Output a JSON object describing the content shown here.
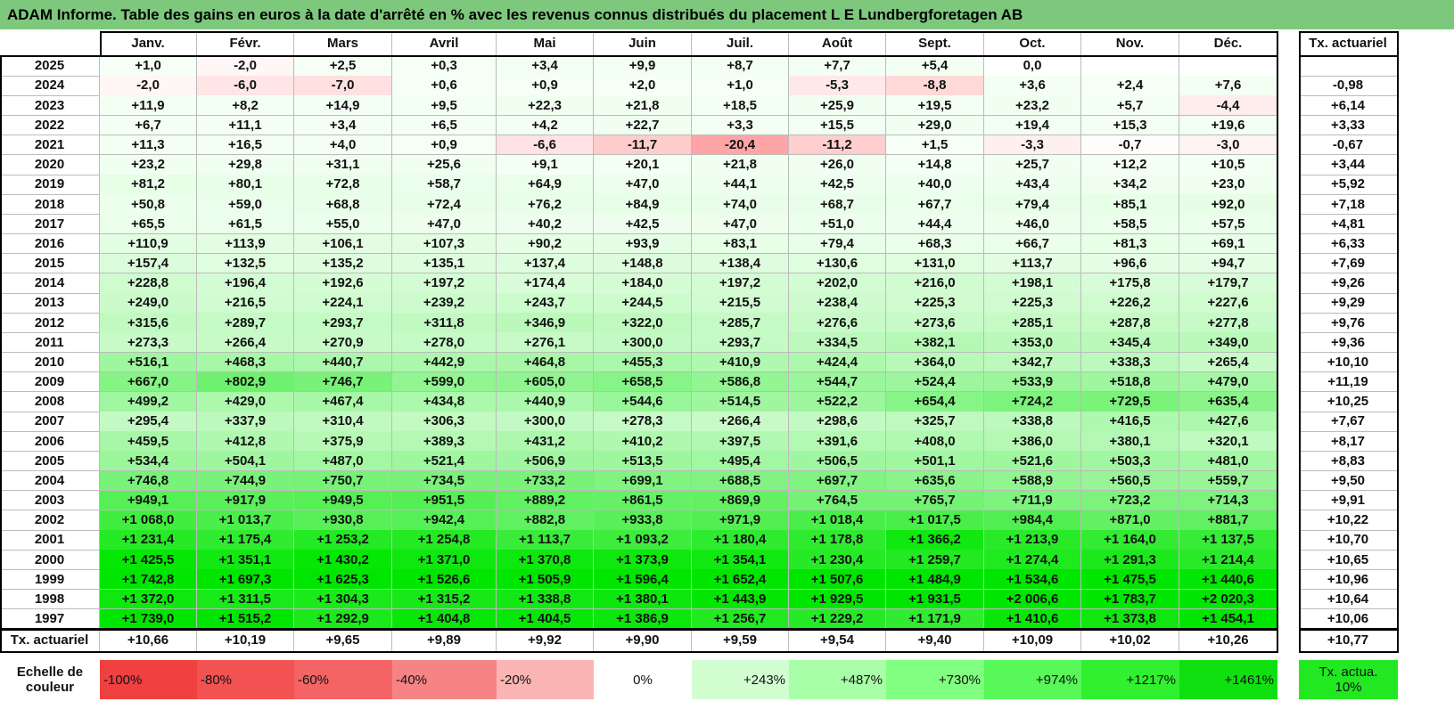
{
  "title": "ADAM Informe. Table des gains en euros à la date d'arrêté en % avec les revenus connus distribués du placement L E Lundbergforetagen AB",
  "header": {
    "months": [
      "Janv.",
      "Févr.",
      "Mars",
      "Avril",
      "Mai",
      "Juin",
      "Juil.",
      "Août",
      "Sept.",
      "Oct.",
      "Nov.",
      "Déc."
    ],
    "tx": "Tx. actuariel"
  },
  "table": {
    "rows": [
      {
        "year": "2025",
        "cells": [
          "+1,0",
          "-2,0",
          "+2,5",
          "+0,3",
          "+3,4",
          "+9,9",
          "+8,7",
          "+7,7",
          "+5,4",
          "0,0"
        ]
      },
      {
        "year": "2024",
        "cells": [
          "-2,0",
          "-6,0",
          "-7,0",
          "+0,6",
          "+0,9",
          "+2,0",
          "+1,0",
          "-5,3",
          "-8,8",
          "+3,6",
          "+2,4",
          "+7,6"
        ],
        "tx": "-0,98"
      },
      {
        "year": "2023",
        "cells": [
          "+11,9",
          "+8,2",
          "+14,9",
          "+9,5",
          "+22,3",
          "+21,8",
          "+18,5",
          "+25,9",
          "+19,5",
          "+23,2",
          "+5,7",
          "-4,4"
        ],
        "tx": "+6,14"
      },
      {
        "year": "2022",
        "cells": [
          "+6,7",
          "+11,1",
          "+3,4",
          "+6,5",
          "+4,2",
          "+22,7",
          "+3,3",
          "+15,5",
          "+29,0",
          "+19,4",
          "+15,3",
          "+19,6"
        ],
        "tx": "+3,33"
      },
      {
        "year": "2021",
        "cells": [
          "+11,3",
          "+16,5",
          "+4,0",
          "+0,9",
          "-6,6",
          "-11,7",
          "-20,4",
          "-11,2",
          "+1,5",
          "-3,3",
          "-0,7",
          "-3,0"
        ],
        "tx": "-0,67"
      },
      {
        "year": "2020",
        "cells": [
          "+23,2",
          "+29,8",
          "+31,1",
          "+25,6",
          "+9,1",
          "+20,1",
          "+21,8",
          "+26,0",
          "+14,8",
          "+25,7",
          "+12,2",
          "+10,5"
        ],
        "tx": "+3,44"
      },
      {
        "year": "2019",
        "cells": [
          "+81,2",
          "+80,1",
          "+72,8",
          "+58,7",
          "+64,9",
          "+47,0",
          "+44,1",
          "+42,5",
          "+40,0",
          "+43,4",
          "+34,2",
          "+23,0"
        ],
        "tx": "+5,92"
      },
      {
        "year": "2018",
        "cells": [
          "+50,8",
          "+59,0",
          "+68,8",
          "+72,4",
          "+76,2",
          "+84,9",
          "+74,0",
          "+68,7",
          "+67,7",
          "+79,4",
          "+85,1",
          "+92,0"
        ],
        "tx": "+7,18"
      },
      {
        "year": "2017",
        "cells": [
          "+65,5",
          "+61,5",
          "+55,0",
          "+47,0",
          "+40,2",
          "+42,5",
          "+47,0",
          "+51,0",
          "+44,4",
          "+46,0",
          "+58,5",
          "+57,5"
        ],
        "tx": "+4,81"
      },
      {
        "year": "2016",
        "cells": [
          "+110,9",
          "+113,9",
          "+106,1",
          "+107,3",
          "+90,2",
          "+93,9",
          "+83,1",
          "+79,4",
          "+68,3",
          "+66,7",
          "+81,3",
          "+69,1"
        ],
        "tx": "+6,33"
      },
      {
        "year": "2015",
        "cells": [
          "+157,4",
          "+132,5",
          "+135,2",
          "+135,1",
          "+137,4",
          "+148,8",
          "+138,4",
          "+130,6",
          "+131,0",
          "+113,7",
          "+96,6",
          "+94,7"
        ],
        "tx": "+7,69"
      },
      {
        "year": "2014",
        "cells": [
          "+228,8",
          "+196,4",
          "+192,6",
          "+197,2",
          "+174,4",
          "+184,0",
          "+197,2",
          "+202,0",
          "+216,0",
          "+198,1",
          "+175,8",
          "+179,7"
        ],
        "tx": "+9,26"
      },
      {
        "year": "2013",
        "cells": [
          "+249,0",
          "+216,5",
          "+224,1",
          "+239,2",
          "+243,7",
          "+244,5",
          "+215,5",
          "+238,4",
          "+225,3",
          "+225,3",
          "+226,2",
          "+227,6"
        ],
        "tx": "+9,29"
      },
      {
        "year": "2012",
        "cells": [
          "+315,6",
          "+289,7",
          "+293,7",
          "+311,8",
          "+346,9",
          "+322,0",
          "+285,7",
          "+276,6",
          "+273,6",
          "+285,1",
          "+287,8",
          "+277,8"
        ],
        "tx": "+9,76"
      },
      {
        "year": "2011",
        "cells": [
          "+273,3",
          "+266,4",
          "+270,9",
          "+278,0",
          "+276,1",
          "+300,0",
          "+293,7",
          "+334,5",
          "+382,1",
          "+353,0",
          "+345,4",
          "+349,0"
        ],
        "tx": "+9,36"
      },
      {
        "year": "2010",
        "cells": [
          "+516,1",
          "+468,3",
          "+440,7",
          "+442,9",
          "+464,8",
          "+455,3",
          "+410,9",
          "+424,4",
          "+364,0",
          "+342,7",
          "+338,3",
          "+265,4"
        ],
        "tx": "+10,10"
      },
      {
        "year": "2009",
        "cells": [
          "+667,0",
          "+802,9",
          "+746,7",
          "+599,0",
          "+605,0",
          "+658,5",
          "+586,8",
          "+544,7",
          "+524,4",
          "+533,9",
          "+518,8",
          "+479,0"
        ],
        "tx": "+11,19"
      },
      {
        "year": "2008",
        "cells": [
          "+499,2",
          "+429,0",
          "+467,4",
          "+434,8",
          "+440,9",
          "+544,6",
          "+514,5",
          "+522,2",
          "+654,4",
          "+724,2",
          "+729,5",
          "+635,4"
        ],
        "tx": "+10,25"
      },
      {
        "year": "2007",
        "cells": [
          "+295,4",
          "+337,9",
          "+310,4",
          "+306,3",
          "+300,0",
          "+278,3",
          "+266,4",
          "+298,6",
          "+325,7",
          "+338,8",
          "+416,5",
          "+427,6"
        ],
        "tx": "+7,67"
      },
      {
        "year": "2006",
        "cells": [
          "+459,5",
          "+412,8",
          "+375,9",
          "+389,3",
          "+431,2",
          "+410,2",
          "+397,5",
          "+391,6",
          "+408,0",
          "+386,0",
          "+380,1",
          "+320,1"
        ],
        "tx": "+8,17"
      },
      {
        "year": "2005",
        "cells": [
          "+534,4",
          "+504,1",
          "+487,0",
          "+521,4",
          "+506,9",
          "+513,5",
          "+495,4",
          "+506,5",
          "+501,1",
          "+521,6",
          "+503,3",
          "+481,0"
        ],
        "tx": "+8,83"
      },
      {
        "year": "2004",
        "cells": [
          "+746,8",
          "+744,9",
          "+750,7",
          "+734,5",
          "+733,2",
          "+699,1",
          "+688,5",
          "+697,7",
          "+635,6",
          "+588,9",
          "+560,5",
          "+559,7"
        ],
        "tx": "+9,50"
      },
      {
        "year": "2003",
        "cells": [
          "+949,1",
          "+917,9",
          "+949,5",
          "+951,5",
          "+889,2",
          "+861,5",
          "+869,9",
          "+764,5",
          "+765,7",
          "+711,9",
          "+723,2",
          "+714,3"
        ],
        "tx": "+9,91"
      },
      {
        "year": "2002",
        "cells": [
          "+1 068,0",
          "+1 013,7",
          "+930,8",
          "+942,4",
          "+882,8",
          "+933,8",
          "+971,9",
          "+1 018,4",
          "+1 017,5",
          "+984,4",
          "+871,0",
          "+881,7"
        ],
        "tx": "+10,22"
      },
      {
        "year": "2001",
        "cells": [
          "+1 231,4",
          "+1 175,4",
          "+1 253,2",
          "+1 254,8",
          "+1 113,7",
          "+1 093,2",
          "+1 180,4",
          "+1 178,8",
          "+1 366,2",
          "+1 213,9",
          "+1 164,0",
          "+1 137,5"
        ],
        "tx": "+10,70"
      },
      {
        "year": "2000",
        "cells": [
          "+1 425,5",
          "+1 351,1",
          "+1 430,2",
          "+1 371,0",
          "+1 370,8",
          "+1 373,9",
          "+1 354,1",
          "+1 230,4",
          "+1 259,7",
          "+1 274,4",
          "+1 291,3",
          "+1 214,4"
        ],
        "tx": "+10,65"
      },
      {
        "year": "1999",
        "cells": [
          "+1 742,8",
          "+1 697,3",
          "+1 625,3",
          "+1 526,6",
          "+1 505,9",
          "+1 596,4",
          "+1 652,4",
          "+1 507,6",
          "+1 484,9",
          "+1 534,6",
          "+1 475,5",
          "+1 440,6"
        ],
        "tx": "+10,96"
      },
      {
        "year": "1998",
        "cells": [
          "+1 372,0",
          "+1 311,5",
          "+1 304,3",
          "+1 315,2",
          "+1 338,8",
          "+1 380,1",
          "+1 443,9",
          "+1 929,5",
          "+1 931,5",
          "+2 006,6",
          "+1 783,7",
          "+2 020,3"
        ],
        "tx": "+10,64"
      },
      {
        "year": "1997",
        "cells": [
          "+1 739,0",
          "+1 515,2",
          "+1 292,9",
          "+1 404,8",
          "+1 404,5",
          "+1 386,9",
          "+1 256,7",
          "+1 229,2",
          "+1 171,9",
          "+1 410,6",
          "+1 373,8",
          "+1 454,1"
        ],
        "tx": "+10,06"
      }
    ]
  },
  "footer": {
    "label": "Tx. actuariel",
    "cells": [
      "+10,66",
      "+10,19",
      "+9,65",
      "+9,89",
      "+9,92",
      "+9,90",
      "+9,59",
      "+9,54",
      "+9,40",
      "+10,09",
      "+10,02",
      "+10,26"
    ],
    "tx": "+10,77"
  },
  "legend": {
    "label": "Echelle de couleur",
    "items": [
      {
        "label": "-100%",
        "color": "#f04040"
      },
      {
        "label": "-80%",
        "color": "#f25252"
      },
      {
        "label": "-60%",
        "color": "#f46464"
      },
      {
        "label": "-40%",
        "color": "#f78484"
      },
      {
        "label": "-20%",
        "color": "#fbb4b4"
      },
      {
        "label": "0%",
        "color": "#ffffff"
      },
      {
        "label": "+243%",
        "color": "#d2ffd2"
      },
      {
        "label": "+487%",
        "color": "#a8ffa8"
      },
      {
        "label": "+730%",
        "color": "#80ff80"
      },
      {
        "label": "+974%",
        "color": "#58f858"
      },
      {
        "label": "+1217%",
        "color": "#30f030"
      },
      {
        "label": "+1461%",
        "color": "#10e010"
      }
    ],
    "tx": {
      "label": "Tx. actua. 10%",
      "color": "#22e822"
    }
  }
}
